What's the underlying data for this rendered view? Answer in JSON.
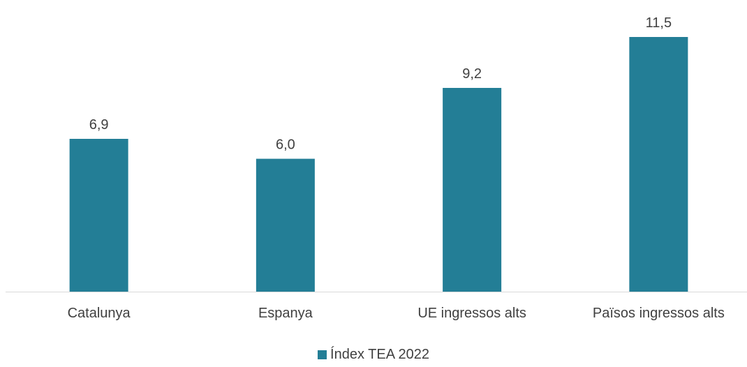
{
  "chart_data": {
    "type": "bar",
    "categories": [
      "Catalunya",
      "Espanya",
      "UE ingressos alts",
      "Països ingressos alts"
    ],
    "series": [
      {
        "name": "Índex TEA 2022",
        "values": [
          6.9,
          6.0,
          9.2,
          11.5
        ],
        "labels": [
          "6,9",
          "6,0",
          "9,2",
          "11,5"
        ],
        "color": "#237E96"
      }
    ],
    "ylim": [
      0,
      11.5
    ],
    "grid": false,
    "legend_position": "bottom"
  },
  "colors": {
    "bar": "#237E96",
    "axis": "#D9D9D9",
    "text": "#404040"
  }
}
